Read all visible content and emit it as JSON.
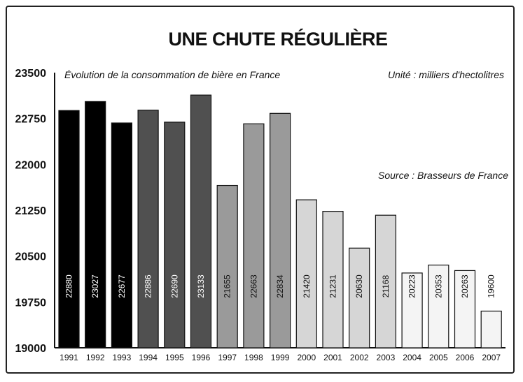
{
  "chart_data": {
    "type": "bar",
    "title": "UNE CHUTE RÉGULIÈRE",
    "subtitle": "Évolution de la consommation de bière en France",
    "unit_note": "Unité : milliers d'hectolitres",
    "source_note": "Source : Brasseurs de France",
    "categories": [
      "1991",
      "1992",
      "1993",
      "1994",
      "1995",
      "1996",
      "1997",
      "1998",
      "1999",
      "2000",
      "2001",
      "2002",
      "2003",
      "2004",
      "2005",
      "2006",
      "2007"
    ],
    "values": [
      22880,
      23027,
      22677,
      22886,
      22690,
      23133,
      21655,
      22663,
      22834,
      21420,
      21231,
      20630,
      21168,
      20223,
      20353,
      20263,
      19600
    ],
    "ylim": [
      19000,
      23500
    ],
    "yticks": [
      19000,
      19750,
      20500,
      21250,
      22000,
      22750,
      23500
    ],
    "grid": false,
    "colors": [
      "#000000",
      "#000000",
      "#000000",
      "#505050",
      "#505050",
      "#505050",
      "#9a9a9a",
      "#9a9a9a",
      "#9a9a9a",
      "#d6d6d6",
      "#d6d6d6",
      "#d6d6d6",
      "#d6d6d6",
      "#f4f4f4",
      "#f4f4f4",
      "#f4f4f4",
      "#f4f4f4"
    ],
    "label_colors": [
      "#ffffff",
      "#ffffff",
      "#ffffff",
      "#ffffff",
      "#ffffff",
      "#ffffff",
      "#111111",
      "#111111",
      "#111111",
      "#111111",
      "#111111",
      "#111111",
      "#111111",
      "#111111",
      "#111111",
      "#111111",
      "#111111"
    ]
  }
}
